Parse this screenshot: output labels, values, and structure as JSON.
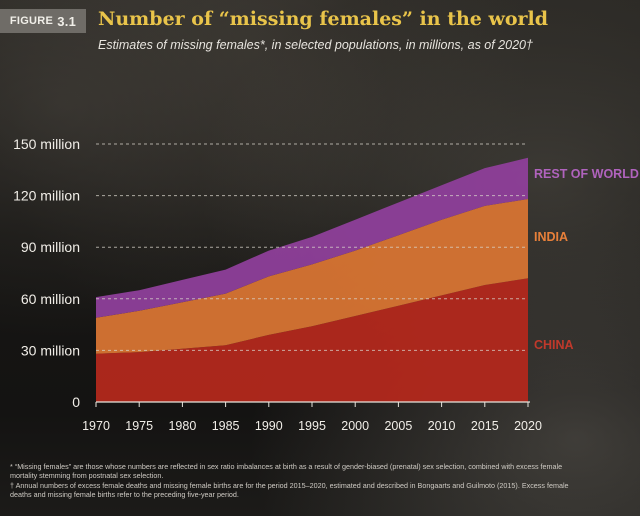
{
  "figure_label": {
    "prefix": "FIGURE",
    "number": "3.1"
  },
  "chart_data": {
    "type": "area",
    "stacked": true,
    "title": "Number of “missing females” in the world",
    "subtitle": "Estimates of missing females*, in selected populations, in millions, as of 2020†",
    "x": [
      1970,
      1975,
      1980,
      1985,
      1990,
      1995,
      2000,
      2005,
      2010,
      2015,
      2020
    ],
    "x_tick_labels": [
      "1970",
      "1975",
      "1980",
      "1985",
      "1990",
      "1995",
      "2000",
      "2005",
      "2010",
      "2015",
      "2020"
    ],
    "y_tick_values": [
      0,
      30,
      60,
      90,
      120,
      150
    ],
    "y_tick_labels": [
      "0",
      "30 million",
      "60 million",
      "90 million",
      "120 million",
      "150 million"
    ],
    "ylim": [
      0,
      155
    ],
    "grid": "dashed horizontal",
    "series": [
      {
        "name": "CHINA",
        "color": "#b2281c",
        "values": [
          28,
          29,
          31,
          33,
          39,
          44,
          50,
          56,
          62,
          68,
          72
        ]
      },
      {
        "name": "INDIA",
        "color": "#d77433",
        "values": [
          21,
          24,
          27,
          30,
          34,
          36,
          38,
          41,
          44,
          46,
          46
        ]
      },
      {
        "name": "REST OF WORLD",
        "color": "#8e3f9a",
        "values": [
          12,
          12,
          13,
          14,
          15,
          16,
          18,
          19,
          20,
          22,
          24
        ]
      }
    ],
    "label_colors": {
      "CHINA": "#c0392b",
      "INDIA": "#e8803a",
      "REST OF WORLD": "#b063bd"
    }
  },
  "footnotes": [
    "* “Missing females” are those whose numbers are reflected in sex ratio imbalances at birth as a result of gender-biased (prenatal) sex selection, combined with excess female mortality stemming from postnatal sex selection.",
    "† Annual numbers of excess female deaths and missing female births are for the period 2015–2020, estimated and described in Bongaarts and Guilmoto (2015). Excess female deaths and missing female births refer to the preceding five-year period."
  ]
}
